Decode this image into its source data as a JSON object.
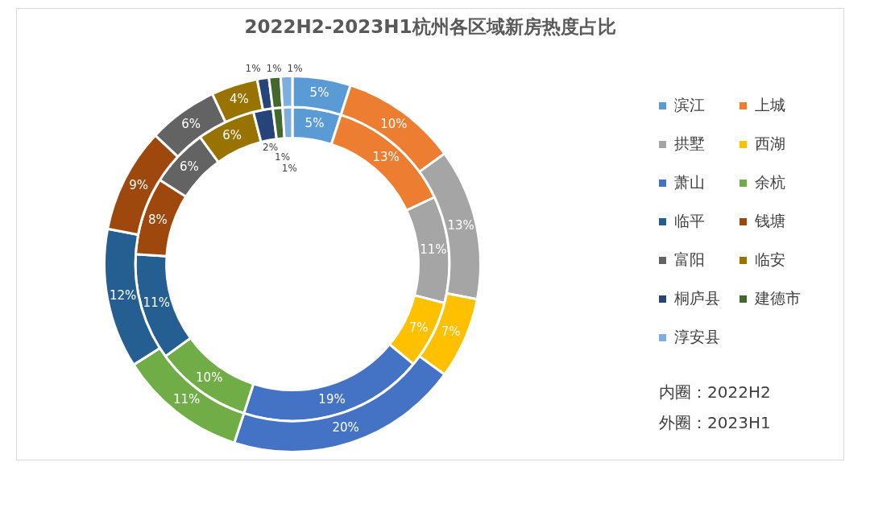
{
  "chart_data": {
    "type": "donut",
    "title": "2022H2-2023H1杭州各区域新房热度占比",
    "categories": [
      "滨江",
      "上城",
      "拱墅",
      "西湖",
      "萧山",
      "余杭",
      "临平",
      "钱塘",
      "富阳",
      "临安",
      "桐庐县",
      "建德市",
      "淳安县"
    ],
    "colors": [
      "#5b9bd5",
      "#ed7d31",
      "#a5a5a5",
      "#ffc000",
      "#4472c4",
      "#70ad47",
      "#255e91",
      "#9e480e",
      "#636363",
      "#997300",
      "#264478",
      "#43682b",
      "#7cafdd"
    ],
    "series": [
      {
        "values": [
          5,
          13,
          11,
          7,
          19,
          10,
          11,
          8,
          6,
          6,
          2,
          1,
          1
        ],
        "value_labels": [
          "5%",
          "13%",
          "11%",
          "7%",
          "19%",
          "10%",
          "11%",
          "8%",
          "6%",
          "6%",
          "2%",
          "1%",
          "1%"
        ]
      },
      {
        "values": [
          5,
          10,
          13,
          7,
          20,
          11,
          12,
          9,
          6,
          4,
          1,
          1,
          1
        ],
        "value_labels": [
          "5%",
          "10%",
          "13%",
          "7%",
          "20%",
          "11%",
          "12%",
          "9%",
          "6%",
          "4%",
          "1%",
          "1%",
          "1%"
        ]
      }
    ],
    "legend": "right",
    "annotations": [
      "内圈：2022H2",
      "外圈：2023H1"
    ]
  }
}
